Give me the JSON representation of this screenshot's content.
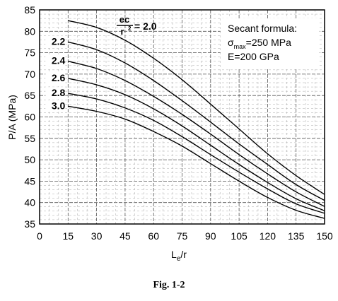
{
  "chart_data": {
    "type": "line",
    "xlabel": "Le/r",
    "ylabel": "P/A  (MPa)",
    "xlim": [
      0,
      150
    ],
    "ylim": [
      35,
      85
    ],
    "xticks": [
      "0",
      "15",
      "30",
      "45",
      "60",
      "75",
      "90",
      "105",
      "120",
      "135",
      "150"
    ],
    "yticks": [
      "35",
      "40",
      "45",
      "50",
      "55",
      "60",
      "65",
      "70",
      "75",
      "80",
      "85"
    ],
    "grid": "dashed",
    "series": [
      {
        "name": "2.0",
        "x": [
          15,
          30,
          45,
          60,
          75,
          90,
          105,
          120,
          135,
          150
        ],
        "y": [
          82.5,
          80.9,
          77.9,
          73.7,
          68.7,
          63.0,
          57.2,
          51.4,
          46.3,
          41.9
        ]
      },
      {
        "name": "2.2",
        "x": [
          15,
          30,
          45,
          60,
          75,
          90,
          105,
          120,
          135,
          150
        ],
        "y": [
          77.5,
          75.7,
          72.6,
          68.5,
          63.8,
          58.8,
          53.7,
          48.9,
          44.2,
          40.5
        ]
      },
      {
        "name": "2.4",
        "x": [
          15,
          30,
          45,
          60,
          75,
          90,
          105,
          120,
          135,
          150
        ],
        "y": [
          73.0,
          71.3,
          68.5,
          64.8,
          60.6,
          56.0,
          51.2,
          46.7,
          42.5,
          39.1
        ]
      },
      {
        "name": "2.6",
        "x": [
          15,
          30,
          45,
          60,
          75,
          90,
          105,
          120,
          135,
          150
        ],
        "y": [
          69.0,
          67.5,
          65.2,
          61.9,
          57.9,
          53.4,
          48.9,
          44.7,
          40.9,
          38.1
        ]
      },
      {
        "name": "2.8",
        "x": [
          15,
          30,
          45,
          60,
          75,
          90,
          105,
          120,
          135,
          150
        ],
        "y": [
          65.5,
          64.2,
          62.1,
          59.2,
          55.4,
          51.2,
          47.1,
          43.2,
          39.7,
          37.5
        ]
      },
      {
        "name": "3.0",
        "x": [
          15,
          30,
          45,
          60,
          75,
          90,
          105,
          120,
          135,
          150
        ],
        "y": [
          62.5,
          61.3,
          59.5,
          56.6,
          53.2,
          49.1,
          45.0,
          41.2,
          38.2,
          36.3
        ]
      }
    ],
    "curve_labels": [
      "2.2",
      "2.4",
      "2.6",
      "2.8",
      "3.0"
    ],
    "top_label": {
      "numerator": "ec",
      "denominator": "r",
      "denominator_sup": "2",
      "value": "= 2.0"
    }
  },
  "annotation": {
    "line1": "Secant formula:",
    "sigma": "σ",
    "sigma_sub": "max",
    "sigma_value": "=250 MPa",
    "line3": "E=200 GPa"
  },
  "xlabel_parts": {
    "main": "L",
    "sub": "e",
    "rest": "/r"
  },
  "caption": "Fig. 1-2"
}
